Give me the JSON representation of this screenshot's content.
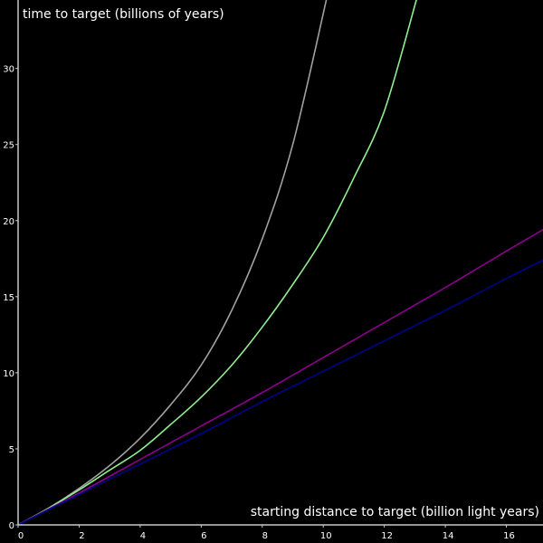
{
  "chart_data": {
    "type": "line",
    "title": "",
    "xlabel": "starting distance to target (billion light years)",
    "ylabel": "time to target (billions of years)",
    "xlim": [
      0,
      17.2
    ],
    "ylim": [
      0,
      34.5
    ],
    "x_ticks": [
      0,
      2,
      4,
      6,
      8,
      10,
      12,
      14,
      16
    ],
    "y_ticks": [
      0,
      5,
      10,
      15,
      20,
      25,
      30
    ],
    "grid": false,
    "background": "#000000",
    "axis_color": "#c8c8c8",
    "text_color": "#ffffff",
    "series": [
      {
        "color": "#a0a0a0",
        "x": [
          0,
          1,
          2,
          3,
          4,
          5,
          6,
          7,
          8,
          9,
          10.1
        ],
        "y": [
          0,
          1.1,
          2.4,
          3.9,
          5.7,
          7.9,
          10.5,
          14.1,
          18.8,
          25.0,
          34.5
        ]
      },
      {
        "color": "#90ee90",
        "x": [
          0,
          1,
          2,
          3,
          4,
          5,
          6,
          7,
          8,
          9,
          10,
          11,
          12,
          13.05
        ],
        "y": [
          0,
          1.1,
          2.3,
          3.6,
          4.9,
          6.6,
          8.4,
          10.5,
          13.0,
          15.8,
          18.9,
          22.8,
          27.2,
          34.5
        ]
      },
      {
        "color": "#8b008b",
        "x": [
          0,
          2,
          4,
          6,
          8,
          10,
          12,
          14,
          16,
          17.2
        ],
        "y": [
          0,
          2.1,
          4.3,
          6.5,
          8.7,
          11.0,
          13.3,
          15.6,
          18.0,
          19.4
        ]
      },
      {
        "color": "#00008b",
        "x": [
          0,
          2,
          4,
          6,
          8,
          10,
          12,
          14,
          16,
          17.2
        ],
        "y": [
          0,
          2.0,
          4.0,
          6.0,
          8.1,
          10.1,
          12.1,
          14.1,
          16.2,
          17.4
        ]
      }
    ]
  }
}
